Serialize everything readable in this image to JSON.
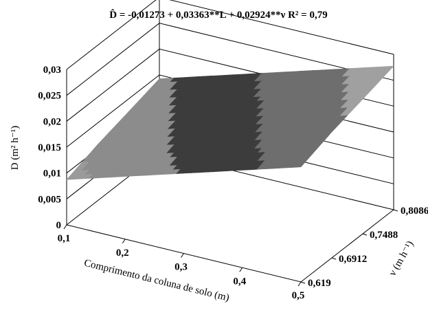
{
  "chart_data": {
    "type": "surface",
    "title": "D̂  = -0,01273 + 0,03363**L + 0,02924**ν    R² = 0,79",
    "x_label": "Comprimento da coluna de solo (m)",
    "y_label": "ν (m h⁻¹)",
    "z_label": "D (m² h⁻¹)",
    "x": [
      "0,1",
      "0,2",
      "0,3",
      "0,4",
      "0,5"
    ],
    "y": [
      "0,619",
      "0,6912",
      "0,7488",
      "0,8086"
    ],
    "values": [
      [
        0.00873,
        0.0121,
        0.01546,
        0.01882,
        0.02219
      ],
      [
        0.01084,
        0.01421,
        0.01757,
        0.02093,
        0.0243
      ],
      [
        0.01253,
        0.0159,
        0.01926,
        0.02262,
        0.02599
      ],
      [
        0.01427,
        0.01764,
        0.021,
        0.02436,
        0.02773
      ]
    ],
    "zlim": [
      0,
      0.03
    ],
    "zticks": [
      0,
      {
        "value": 0.005,
        "label": "0,005"
      },
      {
        "value": 0.01,
        "label": "0,01"
      },
      {
        "value": 0.015,
        "label": "0,015"
      },
      {
        "value": 0.02,
        "label": "0,02"
      },
      {
        "value": 0.025,
        "label": "0,025"
      },
      {
        "value": 0.03,
        "label": "0,03"
      }
    ],
    "band_colors": [
      "#9a9a9a",
      "#9a9a9a",
      "#8c8c8c",
      "#3c3c3c",
      "#6e6e6e",
      "#a0a0a0"
    ]
  }
}
